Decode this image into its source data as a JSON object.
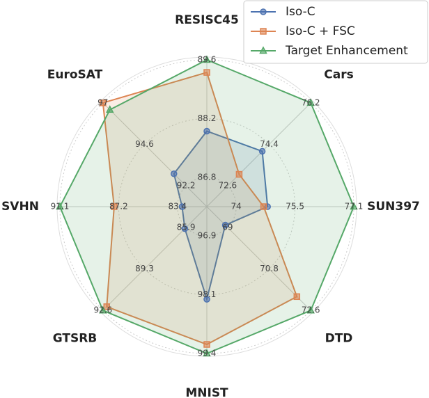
{
  "chart_data": {
    "type": "radar",
    "axes": [
      {
        "label": "RESISC45",
        "ticks": [
          86.8,
          88.2,
          89.6
        ]
      },
      {
        "label": "Cars",
        "ticks": [
          72.6,
          74.4,
          76.2
        ]
      },
      {
        "label": "SUN397",
        "ticks": [
          74.0,
          75.5,
          77.1
        ]
      },
      {
        "label": "DTD",
        "ticks": [
          69.0,
          70.8,
          72.6
        ]
      },
      {
        "label": "MNIST",
        "ticks": [
          96.9,
          98.1,
          99.4
        ]
      },
      {
        "label": "GTSRB",
        "ticks": [
          85.9,
          89.3,
          92.6
        ]
      },
      {
        "label": "SVHN",
        "ticks": [
          83.4,
          87.2,
          91.1
        ]
      },
      {
        "label": "EuroSAT",
        "ticks": [
          92.2,
          94.6,
          97.0
        ]
      }
    ],
    "series": [
      {
        "name": "Iso-C",
        "color": "#4c72b0",
        "marker": "circle",
        "values": [
          87.9,
          74.1,
          74.8,
          68.9,
          98.2,
          86.0,
          83.1,
          92.9
        ]
      },
      {
        "name": "Iso-C + FSC",
        "color": "#dd8452",
        "marker": "square",
        "values": [
          89.3,
          73.1,
          74.7,
          72.0,
          99.2,
          92.3,
          87.5,
          97.0
        ]
      },
      {
        "name": "Target Enhancement",
        "color": "#55a868",
        "marker": "triangle",
        "values": [
          89.6,
          76.2,
          77.1,
          72.6,
          99.4,
          92.6,
          91.1,
          96.6
        ]
      }
    ],
    "grid": true,
    "legend": "upper right"
  }
}
